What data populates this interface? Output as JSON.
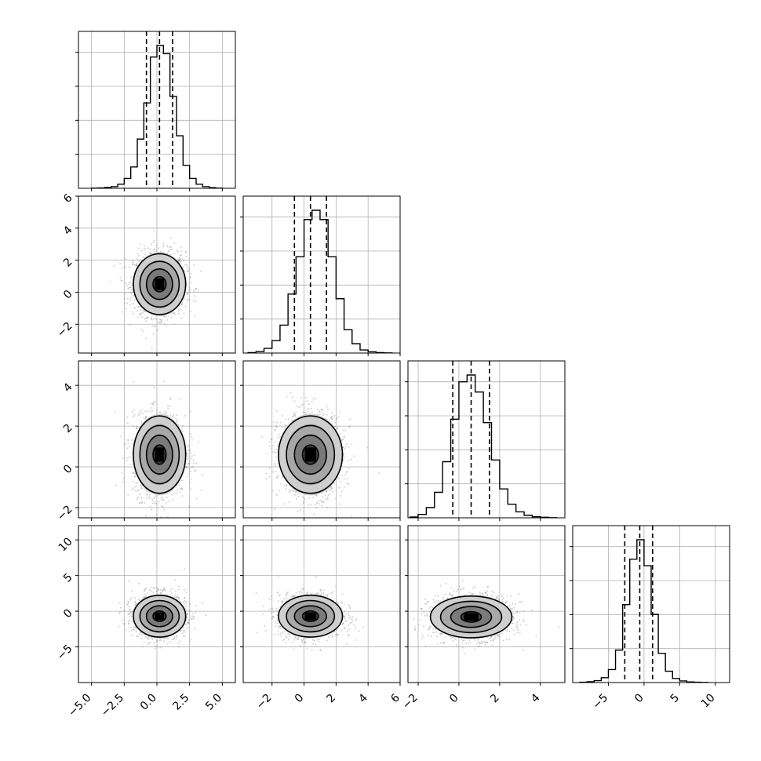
{
  "chart_data": {
    "type": "corner",
    "grid": true,
    "variables": [
      {
        "range": [
          -6,
          6
        ],
        "ticks": [
          "−5.0",
          "−2.5",
          "0.0",
          "2.5",
          "5.0"
        ],
        "tick_values": [
          -5,
          -2.5,
          0,
          2.5,
          5
        ],
        "quantiles": [
          -0.8,
          0.2,
          1.2
        ],
        "hist_bins": [
          -5,
          -4.5,
          -4,
          -3.5,
          -3,
          -2.5,
          -2,
          -1.5,
          -1,
          -0.5,
          0,
          0.5,
          1,
          1.5,
          2,
          2.5,
          3,
          3.5,
          4,
          4.5,
          5
        ],
        "hist_counts": [
          1,
          2,
          5,
          10,
          25,
          60,
          130,
          300,
          520,
          800,
          870,
          820,
          560,
          320,
          140,
          60,
          25,
          10,
          4,
          1
        ]
      },
      {
        "range": [
          -3.8,
          6
        ],
        "ticks": [
          "−2",
          "0",
          "2",
          "4",
          "6"
        ],
        "tick_values": [
          -2,
          0,
          2,
          4,
          6
        ],
        "quantiles": [
          -0.6,
          0.4,
          1.4
        ],
        "hist_bins": [
          -3.5,
          -3,
          -2.5,
          -2,
          -1.5,
          -1,
          -0.5,
          0,
          0.5,
          1,
          1.5,
          2,
          2.5,
          3,
          3.5,
          4,
          4.5,
          5,
          5.5
        ],
        "hist_counts": [
          3,
          10,
          30,
          80,
          180,
          380,
          620,
          860,
          920,
          860,
          620,
          350,
          150,
          60,
          20,
          8,
          3,
          1
        ]
      },
      {
        "range": [
          -2.5,
          5.2
        ],
        "ticks": [
          "−2",
          "0",
          "2",
          "4"
        ],
        "tick_values": [
          -2,
          0,
          2,
          4
        ],
        "quantiles": [
          -0.3,
          0.6,
          1.5
        ],
        "hist_bins": [
          -2.4,
          -2,
          -1.6,
          -1.2,
          -0.8,
          -0.4,
          0,
          0.4,
          0.8,
          1.2,
          1.6,
          2,
          2.4,
          2.8,
          3.2,
          3.6,
          4,
          4.4,
          4.8
        ],
        "hist_counts": [
          5,
          20,
          60,
          150,
          330,
          580,
          800,
          840,
          740,
          560,
          340,
          170,
          80,
          35,
          15,
          6,
          3,
          1
        ]
      },
      {
        "range": [
          -10,
          12
        ],
        "ticks": [
          "−5",
          "0",
          "5",
          "10"
        ],
        "tick_values": [
          -5,
          0,
          5,
          10
        ],
        "quantiles": [
          -2.7,
          -0.6,
          1.2
        ],
        "hist_bins": [
          -9,
          -8,
          -7,
          -6,
          -5,
          -4,
          -3,
          -2,
          -1,
          0,
          1,
          2,
          3,
          4,
          5,
          6,
          7,
          8,
          9
        ],
        "hist_counts": [
          2,
          5,
          12,
          30,
          80,
          200,
          480,
          760,
          880,
          720,
          420,
          180,
          70,
          25,
          10,
          4,
          2,
          1
        ]
      }
    ],
    "pairs_means": [
      [
        0.2,
        0.5
      ],
      [
        0.2,
        0.6
      ],
      [
        0.4,
        0.6
      ],
      [
        0.2,
        -0.7
      ],
      [
        0.4,
        -0.7
      ],
      [
        0.6,
        -0.8
      ]
    ],
    "pairs_sds": [
      [
        1.0,
        1.0,
        1.0,
        1.0
      ],
      [
        1.0,
        1.0,
        1.0,
        1.0
      ],
      [
        1.0,
        1.0,
        1.0,
        1.0
      ],
      [
        1.0,
        2.2,
        1.0,
        2.2
      ],
      [
        1.0,
        2.2,
        1.0,
        2.2
      ],
      [
        1.0,
        2.2,
        1.0,
        2.2
      ]
    ],
    "contour_levels_sigma": [
      0.5,
      1.0,
      1.5,
      2.0
    ]
  }
}
